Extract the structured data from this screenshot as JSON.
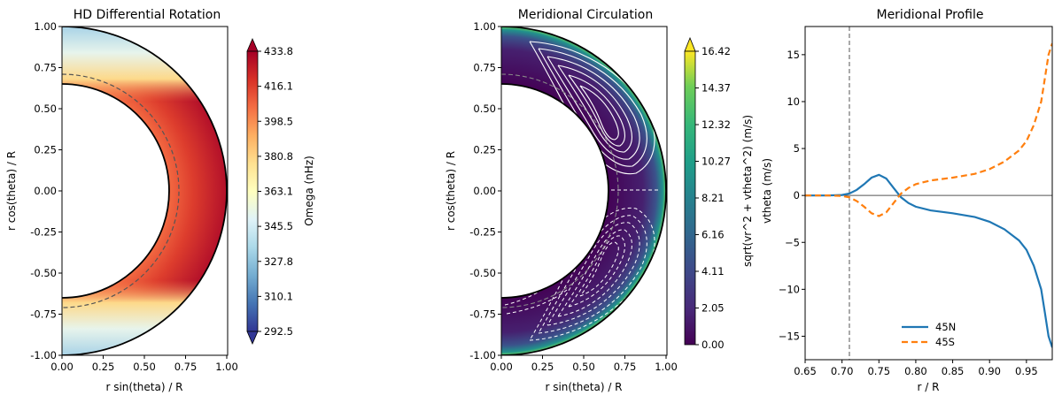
{
  "chart_data": [
    {
      "type": "heatmap",
      "title": "HD Differential Rotation",
      "xlabel": "r sin(theta) / R",
      "ylabel": "r cos(theta) / R",
      "xlim": [
        0.0,
        1.0
      ],
      "ylim": [
        -1.0,
        1.0
      ],
      "xticks": [
        "0.00",
        "0.25",
        "0.50",
        "0.75",
        "1.00"
      ],
      "yticks": [
        "1.00",
        "0.75",
        "0.50",
        "0.25",
        "0.00",
        "-0.25",
        "-0.50",
        "-0.75",
        "-1.00"
      ],
      "inner_radius": 0.65,
      "tachocline_radius": 0.71,
      "colorbar": {
        "label": "Omega (nHz)",
        "colormap": "RdYlBu_r",
        "range": [
          292.5,
          433.8
        ],
        "ticks": [
          "433.8",
          "416.1",
          "398.5",
          "380.8",
          "363.1",
          "345.5",
          "327.8",
          "310.1",
          "292.5"
        ]
      }
    },
    {
      "type": "heatmap",
      "title": "Meridional Circulation",
      "xlabel": "r sin(theta) / R",
      "ylabel": "r cos(theta) / R",
      "xlim": [
        0.0,
        1.0
      ],
      "ylim": [
        -1.0,
        1.0
      ],
      "xticks": [
        "0.00",
        "0.25",
        "0.50",
        "0.75",
        "1.00"
      ],
      "yticks": [
        "1.00",
        "0.75",
        "0.50",
        "0.25",
        "0.00",
        "-0.25",
        "-0.50",
        "-0.75",
        "-1.00"
      ],
      "inner_radius": 0.65,
      "tachocline_radius": 0.71,
      "colorbar": {
        "label": "sqrt(vr^2 + vtheta^2) (m/s)",
        "colormap": "viridis",
        "range": [
          0.0,
          16.42
        ],
        "ticks": [
          "16.42",
          "14.37",
          "12.32",
          "10.27",
          "8.21",
          "6.16",
          "4.11",
          "2.05",
          "0.00"
        ]
      }
    },
    {
      "type": "line",
      "title": "Meridional Profile",
      "xlabel": "r / R",
      "ylabel": "vtheta (m/s)",
      "xlim": [
        0.65,
        0.985
      ],
      "ylim": [
        -17.5,
        18.0
      ],
      "xticks": [
        "0.65",
        "0.70",
        "0.75",
        "0.80",
        "0.85",
        "0.90",
        "0.95"
      ],
      "yticks": [
        "15",
        "10",
        "5",
        "0",
        "-5",
        "-10",
        "-15"
      ],
      "vline_x": 0.71,
      "legend_position": "bottom-center",
      "x": [
        0.65,
        0.68,
        0.7,
        0.71,
        0.72,
        0.73,
        0.74,
        0.75,
        0.76,
        0.77,
        0.78,
        0.79,
        0.8,
        0.82,
        0.85,
        0.88,
        0.9,
        0.92,
        0.94,
        0.95,
        0.96,
        0.97,
        0.975,
        0.98,
        0.985
      ],
      "series": [
        {
          "name": "45N",
          "color": "#1f77b4",
          "dash": "solid",
          "values": [
            0.0,
            0.0,
            0.05,
            0.2,
            0.6,
            1.2,
            1.9,
            2.2,
            1.8,
            0.8,
            -0.2,
            -0.8,
            -1.2,
            -1.6,
            -1.9,
            -2.3,
            -2.8,
            -3.6,
            -4.8,
            -5.8,
            -7.5,
            -10.0,
            -12.5,
            -15.0,
            -16.2
          ]
        },
        {
          "name": "45S",
          "color": "#ff7f0e",
          "dash": "dashed",
          "values": [
            0.0,
            0.0,
            -0.05,
            -0.2,
            -0.6,
            -1.2,
            -1.9,
            -2.2,
            -1.8,
            -0.8,
            0.2,
            0.8,
            1.2,
            1.6,
            1.9,
            2.3,
            2.8,
            3.6,
            4.8,
            5.8,
            7.5,
            10.0,
            12.5,
            15.0,
            16.2
          ]
        }
      ]
    }
  ]
}
